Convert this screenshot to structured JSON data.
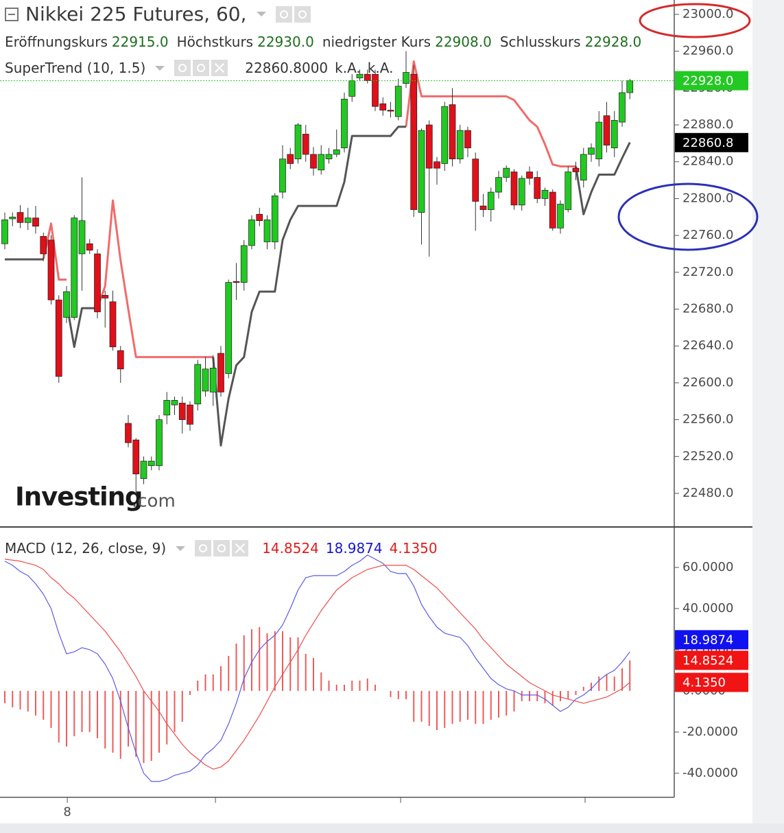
{
  "chart_data": [
    {
      "type": "candlestick",
      "title": "Nikkei 225 Futures, 60,",
      "ohlc": [
        {
          "name": "Eröffnungskurs",
          "text": "22915.0"
        },
        {
          "name": "Höchstkurs",
          "text": "22930.0"
        },
        {
          "name": "niedrigster Kurs",
          "text": "22908.0"
        },
        {
          "name": "Schlusskurs",
          "text": "22928.0"
        }
      ],
      "indicator": {
        "name": "SuperTrend (10, 1.5)",
        "values": [
          "22860.8000",
          "k.A.",
          "k.A."
        ]
      },
      "watermark": [
        "Investing",
        ".com"
      ],
      "up_color": "#22c922",
      "down_color": "#e0101a",
      "open": [
        22751,
        22778,
        22785,
        22774,
        22779,
        22759,
        22755,
        22690,
        22671,
        22671,
        22740,
        22751,
        22740,
        22695,
        22688,
        22635,
        22556,
        22538,
        22496,
        22510,
        22510,
        22565,
        22576,
        22578,
        22576,
        22577,
        22591,
        22590,
        22632,
        22610,
        22710,
        22709,
        22749,
        22783,
        22753,
        22753,
        22807,
        22848,
        22843,
        22870,
        22848,
        22831,
        22843,
        22848,
        22855,
        22911,
        22931,
        22935,
        22935,
        22903,
        22896,
        22889,
        22925,
        22935,
        22785,
        22880,
        22840,
        22838,
        22902,
        22843,
        22874,
        22843,
        22792,
        22788,
        22807,
        22823,
        22829,
        22793,
        22829,
        22823,
        22800,
        22807,
        22768,
        22788,
        22833,
        22820,
        22848,
        22843,
        22890,
        22855,
        22883,
        22915
      ],
      "high": [
        22785,
        22785,
        22793,
        22790,
        22792,
        22763,
        22760,
        22695,
        22705,
        22782,
        22823,
        22756,
        22745,
        22700,
        22700,
        22640,
        22565,
        22540,
        22520,
        22520,
        22565,
        22590,
        22585,
        22585,
        22580,
        22625,
        22628,
        22630,
        22640,
        22712,
        22730,
        22755,
        22782,
        22790,
        22782,
        22806,
        22858,
        22855,
        22882,
        22880,
        22856,
        22858,
        22855,
        22875,
        22915,
        22935,
        22940,
        22940,
        22940,
        22910,
        22905,
        22930,
        22960,
        22945,
        22876,
        22885,
        22845,
        22905,
        22920,
        22880,
        22878,
        22850,
        22805,
        22812,
        22830,
        22836,
        22832,
        22825,
        22835,
        22830,
        22812,
        22810,
        22798,
        22835,
        22840,
        22855,
        22860,
        22895,
        22905,
        22895,
        22928,
        22930
      ],
      "low": [
        22745,
        22770,
        22768,
        22766,
        22762,
        22732,
        22685,
        22600,
        22665,
        22668,
        22700,
        22740,
        22670,
        22660,
        22635,
        22600,
        22530,
        22480,
        22490,
        22505,
        22505,
        22555,
        22565,
        22545,
        22548,
        22570,
        22585,
        22575,
        22585,
        22605,
        22690,
        22700,
        22745,
        22770,
        22745,
        22745,
        22800,
        22832,
        22838,
        22840,
        22825,
        22826,
        22838,
        22845,
        22850,
        22905,
        22928,
        22925,
        22895,
        22890,
        22888,
        22885,
        22920,
        22780,
        22750,
        22737,
        22815,
        22830,
        22835,
        22838,
        22845,
        22765,
        22780,
        22775,
        22800,
        22818,
        22788,
        22787,
        22815,
        22795,
        22792,
        22765,
        22762,
        22785,
        22820,
        22812,
        22840,
        22835,
        22850,
        22845,
        22878,
        22908
      ],
      "close": [
        22777,
        22780,
        22774,
        22779,
        22770,
        22740,
        22690,
        22607,
        22699,
        22779,
        22776,
        22744,
        22677,
        22692,
        22639,
        22615,
        22535,
        22501,
        22515,
        22515,
        22560,
        22581,
        22581,
        22560,
        22555,
        22620,
        22615,
        22616,
        22590,
        22709,
        22709,
        22749,
        22777,
        22776,
        22777,
        22803,
        22843,
        22838,
        22880,
        22848,
        22833,
        22848,
        22848,
        22853,
        22908,
        22928,
        22935,
        22928,
        22900,
        22896,
        22895,
        22922,
        22937,
        22788,
        22874,
        22833,
        22833,
        22900,
        22843,
        22874,
        22855,
        22797,
        22788,
        22807,
        22823,
        22833,
        22793,
        22822,
        22822,
        22800,
        22809,
        22768,
        22794,
        22829,
        22829,
        22848,
        22855,
        22883,
        22858,
        22885,
        22915,
        22928
      ],
      "lines": [
        {
          "color": "#f26a6a",
          "values": [
            null,
            null,
            null,
            null,
            null,
            22734,
            22773,
            22712,
            22712,
            null,
            null,
            null,
            22681,
            22705,
            22798,
            22733,
            22680,
            22628,
            22628,
            22628,
            22628,
            22628,
            22628,
            22628,
            22628,
            22628,
            22628,
            22628,
            null,
            null,
            null,
            null,
            null,
            null,
            null,
            null,
            null,
            null,
            null,
            null,
            null,
            null,
            null,
            null,
            null,
            null,
            null,
            null,
            null,
            null,
            null,
            null,
            22878,
            22949,
            22911,
            22911,
            22911,
            22911,
            22911,
            22911,
            22911,
            22911,
            22911,
            22911,
            22911,
            22911,
            22907,
            22896,
            22885,
            22878,
            22859,
            22837,
            22835,
            22835,
            22835,
            null,
            null,
            null,
            null,
            null,
            null,
            null
          ]
        },
        {
          "color": "#555555",
          "values": [
            22734,
            22734,
            22734,
            22734,
            22734,
            22734,
            null,
            null,
            22687,
            22639,
            22681,
            22681,
            22681,
            null,
            null,
            null,
            null,
            null,
            null,
            null,
            null,
            null,
            null,
            null,
            null,
            null,
            null,
            22628,
            22532,
            22583,
            22619,
            22628,
            22677,
            22699,
            22699,
            22699,
            22755,
            22777,
            22792,
            22792,
            22792,
            22792,
            22792,
            22792,
            22818,
            22868,
            22868,
            22868,
            22868,
            22868,
            22868,
            22878,
            22878,
            null,
            null,
            null,
            null,
            null,
            null,
            null,
            null,
            null,
            null,
            null,
            null,
            null,
            null,
            null,
            null,
            null,
            null,
            null,
            null,
            null,
            22835,
            22783,
            22807,
            22826,
            22826,
            22826,
            22844,
            22861
          ]
        }
      ],
      "price_tags": [
        {
          "text": "22928.0",
          "value": 22928,
          "color": "#22c922",
          "line": true
        },
        {
          "text": "22860.8",
          "value": 22860.8,
          "color": "#000000",
          "line": false
        }
      ],
      "ylim": [
        22443.5,
        23015.6
      ],
      "yticks": [
        {
          "value": 22480,
          "label": "22480.0"
        },
        {
          "value": 22520,
          "label": "22520.0"
        },
        {
          "value": 22560,
          "label": "22560.0"
        },
        {
          "value": 22600,
          "label": "22600.0"
        },
        {
          "value": 22640,
          "label": "22640.0"
        },
        {
          "value": 22680,
          "label": "22680.0"
        },
        {
          "value": 22720,
          "label": "22720.0"
        },
        {
          "value": 22760,
          "label": "22760.0"
        },
        {
          "value": 22800,
          "label": "22800.0"
        },
        {
          "value": 22840,
          "label": "22840.0"
        },
        {
          "value": 22880,
          "label": "22880.0"
        },
        {
          "value": 22920,
          "label": "22920.0"
        },
        {
          "value": 22960,
          "label": "22960.0"
        },
        {
          "value": 23000,
          "label": "23000.0"
        }
      ]
    },
    {
      "type": "macd",
      "title": "MACD (12, 26, close, 9)",
      "legend_values": [
        {
          "text": "14.8524",
          "color": "#e01b1b"
        },
        {
          "text": "18.9874",
          "color": "#1616d0"
        },
        {
          "text": "4.1350",
          "color": "#e01b1b"
        }
      ],
      "histogram": {
        "color": "#ef5a5a",
        "values": [
          -6,
          -8,
          -9,
          -10,
          -12,
          -14,
          -18,
          -25,
          -27,
          -22,
          -20,
          -20,
          -23,
          -28,
          -30,
          -33,
          -27,
          -32,
          -35,
          -34,
          -30,
          -26,
          -20,
          -15,
          -2,
          5,
          8,
          8,
          12,
          17,
          23,
          27,
          30,
          31,
          28,
          29,
          29,
          26,
          26,
          18,
          16,
          9,
          5,
          3,
          3,
          5,
          5,
          6,
          3,
          0,
          -3,
          -4,
          -4,
          -15,
          -15,
          -17,
          -19,
          -18,
          -16,
          -15,
          -14,
          -16,
          -16,
          -14,
          -13,
          -12,
          -10,
          -5,
          -5,
          -5,
          -6,
          -7,
          -5,
          -4,
          -2,
          2,
          4,
          7,
          8,
          7,
          11,
          14.8524
        ]
      },
      "series": [
        {
          "color": "#5a5ae6",
          "values": [
            63,
            61,
            58,
            56,
            52,
            47,
            40,
            28,
            18,
            19,
            21,
            20,
            18,
            13,
            6,
            -5,
            -18,
            -30,
            -40,
            -44,
            -44,
            -43,
            -41,
            -40,
            -39,
            -36,
            -31,
            -28,
            -24,
            -16,
            -6,
            6,
            14,
            20,
            24,
            27,
            32,
            40,
            49,
            55,
            56,
            56,
            56,
            56,
            58,
            61,
            63,
            66,
            64,
            62,
            58,
            57,
            57,
            51,
            42,
            36,
            31,
            28,
            27,
            26,
            22,
            16,
            11,
            6,
            3,
            1,
            0,
            -2,
            -2,
            -2,
            -4,
            -7,
            -10,
            -8,
            -4,
            -2,
            1,
            5,
            8,
            10,
            14,
            18.9874
          ]
        },
        {
          "color": "#ef4a4a",
          "values": [
            64,
            63.5,
            63,
            62,
            61,
            59,
            55,
            52,
            48,
            45,
            41,
            37,
            33,
            29,
            24,
            19,
            13,
            7,
            0,
            -5,
            -10,
            -16,
            -21,
            -26,
            -30,
            -33,
            -36,
            -38,
            -37,
            -34,
            -29,
            -24,
            -18,
            -12,
            -5,
            2,
            8,
            14,
            20,
            27,
            33,
            39,
            44,
            49,
            52,
            55,
            57,
            59,
            60,
            61,
            61,
            61,
            61,
            59,
            56,
            53,
            50,
            46,
            42,
            38,
            34,
            30,
            25,
            21,
            17,
            13,
            10,
            7,
            4,
            2,
            0,
            -2,
            -3,
            -4,
            -5,
            -6,
            -5,
            -4,
            -3,
            -1,
            1,
            4.135
          ]
        }
      ],
      "price_tags": [
        {
          "text": "18.9874",
          "value": 18.9874,
          "color": "#1010f0"
        },
        {
          "text": "14.8524",
          "value": 14.8524,
          "color": "#f01414"
        },
        {
          "text": "4.1350",
          "value": 4.135,
          "color": "#f01414"
        }
      ],
      "ylim": [
        -51.7,
        77.3
      ],
      "yticks": [
        {
          "value": 60,
          "label": "60.0000"
        },
        {
          "value": 40,
          "label": "40.0000"
        },
        {
          "value": 20,
          "label": "20.0000"
        },
        {
          "value": 0,
          "label": "0.0000"
        },
        {
          "value": -20,
          "label": "-20.0000"
        },
        {
          "value": -40,
          "label": "-40.0000"
        }
      ],
      "xticks": [
        8.1,
        27.3,
        51.3,
        75.2
      ],
      "xtick_labels": [
        "8",
        null,
        null,
        null
      ]
    }
  ]
}
